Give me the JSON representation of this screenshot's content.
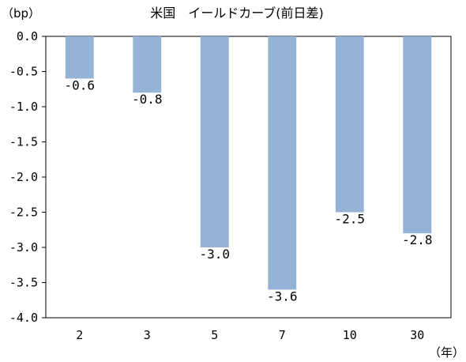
{
  "chart_data": {
    "type": "bar",
    "title": "米国　イールドカーブ(前日差)",
    "ylabel": "（bp）",
    "xlabel": "（年）",
    "categories": [
      "2",
      "3",
      "5",
      "7",
      "10",
      "30"
    ],
    "values": [
      -0.6,
      -0.8,
      -3.0,
      -3.6,
      -2.5,
      -2.8
    ],
    "data_labels": [
      "-0.6",
      "-0.8",
      "-3.0",
      "-3.6",
      "-2.5",
      "-2.8"
    ],
    "ylim": [
      -4.0,
      0.0
    ],
    "yticks": [
      0.0,
      -0.5,
      -1.0,
      -1.5,
      -2.0,
      -2.5,
      -3.0,
      -3.5,
      -4.0
    ],
    "ytick_labels": [
      "0.0",
      "-0.5",
      "-1.0",
      "-1.5",
      "-2.0",
      "-2.5",
      "-3.0",
      "-3.5",
      "-4.0"
    ],
    "bar_color": "#95B3D7",
    "grid": false,
    "legend": "none"
  }
}
